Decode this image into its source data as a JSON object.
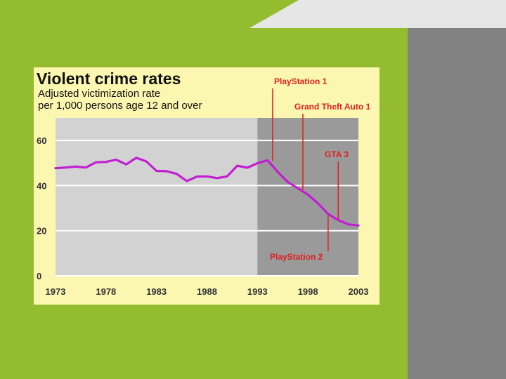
{
  "colors": {
    "slide_green": "#93bd2e",
    "slide_gray": "#828282",
    "slide_light": "#e6e6e6",
    "panel": "#fbf7b0",
    "plot_light": "#d2d2d2",
    "plot_dark": "#9a9a9a",
    "series": "#c21ed1",
    "annotation": "#e02020"
  },
  "chart_data": {
    "type": "line",
    "title": "Violent crime rates",
    "subtitle_lines": [
      "Adjusted victimization rate",
      "per 1,000 persons age 12 and over"
    ],
    "xlim": [
      1973,
      2003
    ],
    "ylim": [
      0,
      70
    ],
    "x_ticks": [
      1973,
      1978,
      1983,
      1988,
      1993,
      1998,
      2003
    ],
    "y_ticks": [
      0,
      20,
      40,
      60
    ],
    "grid": true,
    "shaded_region": [
      1993,
      2003
    ],
    "series": [
      {
        "name": "",
        "x": [
          1973,
          1974,
          1975,
          1976,
          1977,
          1978,
          1979,
          1980,
          1981,
          1982,
          1983,
          1984,
          1985,
          1986,
          1987,
          1988,
          1989,
          1990,
          1991,
          1992,
          1993,
          1994,
          1995,
          1996,
          1997,
          1998,
          1999,
          2000,
          2001,
          2002,
          2003
        ],
        "y": [
          47.7,
          48.0,
          48.4,
          48.0,
          50.3,
          50.5,
          51.5,
          49.4,
          52.3,
          50.7,
          46.5,
          46.4,
          45.2,
          42.0,
          44.0,
          44.1,
          43.3,
          44.1,
          48.8,
          47.9,
          49.9,
          51.2,
          46.1,
          41.6,
          38.8,
          36.0,
          32.1,
          27.4,
          24.7,
          22.8,
          22.3
        ]
      }
    ],
    "annotations": [
      {
        "label": "PlayStation 1",
        "x": 1994.5
      },
      {
        "label": "Grand Theft Auto 1",
        "x": 1997.5
      },
      {
        "label": "GTA 3",
        "x": 2001
      },
      {
        "label": "PlayStation 2",
        "x": 2000
      }
    ]
  }
}
